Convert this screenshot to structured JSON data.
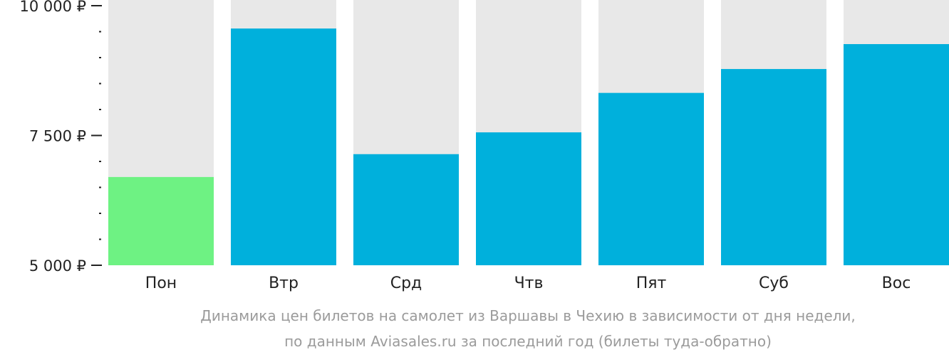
{
  "chart_data": {
    "type": "bar",
    "title": "",
    "xlabel": "",
    "ylabel": "",
    "categories": [
      "Пон",
      "Втр",
      "Срд",
      "Чтв",
      "Пят",
      "Суб",
      "Вос"
    ],
    "values": [
      6700,
      9560,
      7140,
      7560,
      8320,
      8780,
      9260
    ],
    "highlight_index": 0,
    "ylim": [
      5000,
      10000
    ],
    "y_ticks": [
      {
        "value": 5000,
        "label": "5 000 ₽"
      },
      {
        "value": 7500,
        "label": "7 500 ₽"
      },
      {
        "value": 10000,
        "label": "10 000 ₽"
      }
    ],
    "y_minor_step": 500,
    "grid": false,
    "colors": {
      "bar": "#00b0dc",
      "bar_highlight": "#6ef283",
      "bar_track": "#e8e8e8",
      "axis_text": "#222222",
      "caption_text": "#9b9b9b"
    }
  },
  "caption": {
    "line1": "Динамика цен билетов на самолет из Варшавы в Чехию в зависимости от дня недели,",
    "line2": "по данным Aviasales.ru за последний год (билеты туда-обратно)"
  }
}
